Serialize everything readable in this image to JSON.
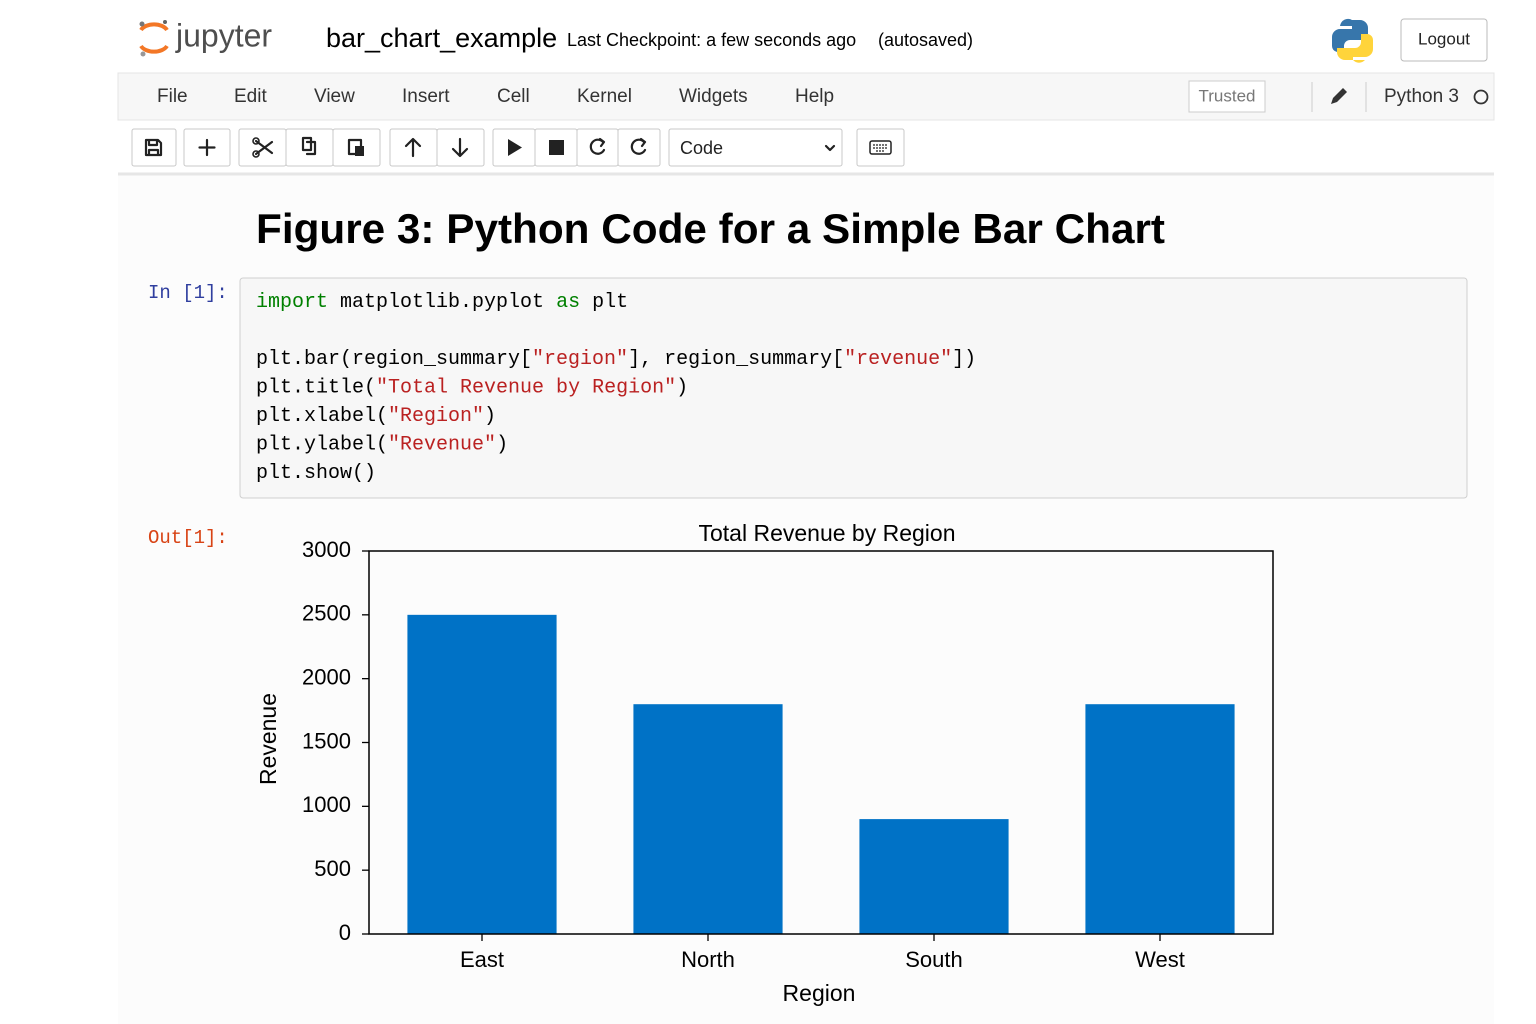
{
  "header": {
    "logo": "jupyter",
    "notebook_name": "bar_chart_example",
    "checkpoint": "Last Checkpoint: a few seconds ago",
    "autosave": "(autosaved)",
    "logout": "Logout"
  },
  "menu": {
    "items": [
      "File",
      "Edit",
      "View",
      "Insert",
      "Cell",
      "Kernel",
      "Widgets",
      "Help"
    ],
    "trusted": "Trusted",
    "kernel": "Python 3"
  },
  "toolbar": {
    "cell_type": "Code"
  },
  "heading": "Figure 3: Python Code for a Simple Bar Chart",
  "cell": {
    "input_prompt": "In [1]:",
    "output_prompt": "Out[1]:",
    "code_blocks": [
      [
        [
          {
            "text": "import",
            "color": "#008000"
          },
          {
            "text": " matplotlib.pyplot ",
            "color": "#000000"
          },
          {
            "text": "as",
            "color": "#008000"
          },
          {
            "text": " plt",
            "color": "#000000"
          }
        ]
      ],
      [
        [
          {
            "text": "plt.bar(region_summary[",
            "color": "#000000"
          },
          {
            "text": "\"region\"",
            "color": "#ba2121"
          },
          {
            "text": "], region_summary[",
            "color": "#000000"
          },
          {
            "text": "\"revenue\"",
            "color": "#ba2121"
          },
          {
            "text": "])",
            "color": "#000000"
          }
        ],
        [
          {
            "text": "plt.title(",
            "color": "#000000"
          },
          {
            "text": "\"Total Revenue by Region\"",
            "color": "#ba2121"
          },
          {
            "text": ")",
            "color": "#000000"
          }
        ],
        [
          {
            "text": "plt.xlabel(",
            "color": "#000000"
          },
          {
            "text": "\"Region\"",
            "color": "#ba2121"
          },
          {
            "text": ")",
            "color": "#000000"
          }
        ],
        [
          {
            "text": "plt.ylabel(",
            "color": "#000000"
          },
          {
            "text": "\"Revenue\"",
            "color": "#ba2121"
          },
          {
            "text": ")",
            "color": "#000000"
          }
        ],
        [
          {
            "text": "plt.show()",
            "color": "#000000"
          }
        ]
      ]
    ]
  },
  "chart_data": {
    "type": "bar",
    "title": "Total Revenue by Region",
    "x_label": "Region",
    "y_label": "Revenue",
    "categories": [
      "East",
      "North",
      "South",
      "West"
    ],
    "values": [
      2500,
      1800,
      900,
      1800
    ],
    "color": "#0072c6",
    "ylim": [
      0,
      3000
    ],
    "yticks": [
      0,
      500,
      1000,
      1500,
      2000,
      2500,
      3000
    ],
    "grid": false
  }
}
